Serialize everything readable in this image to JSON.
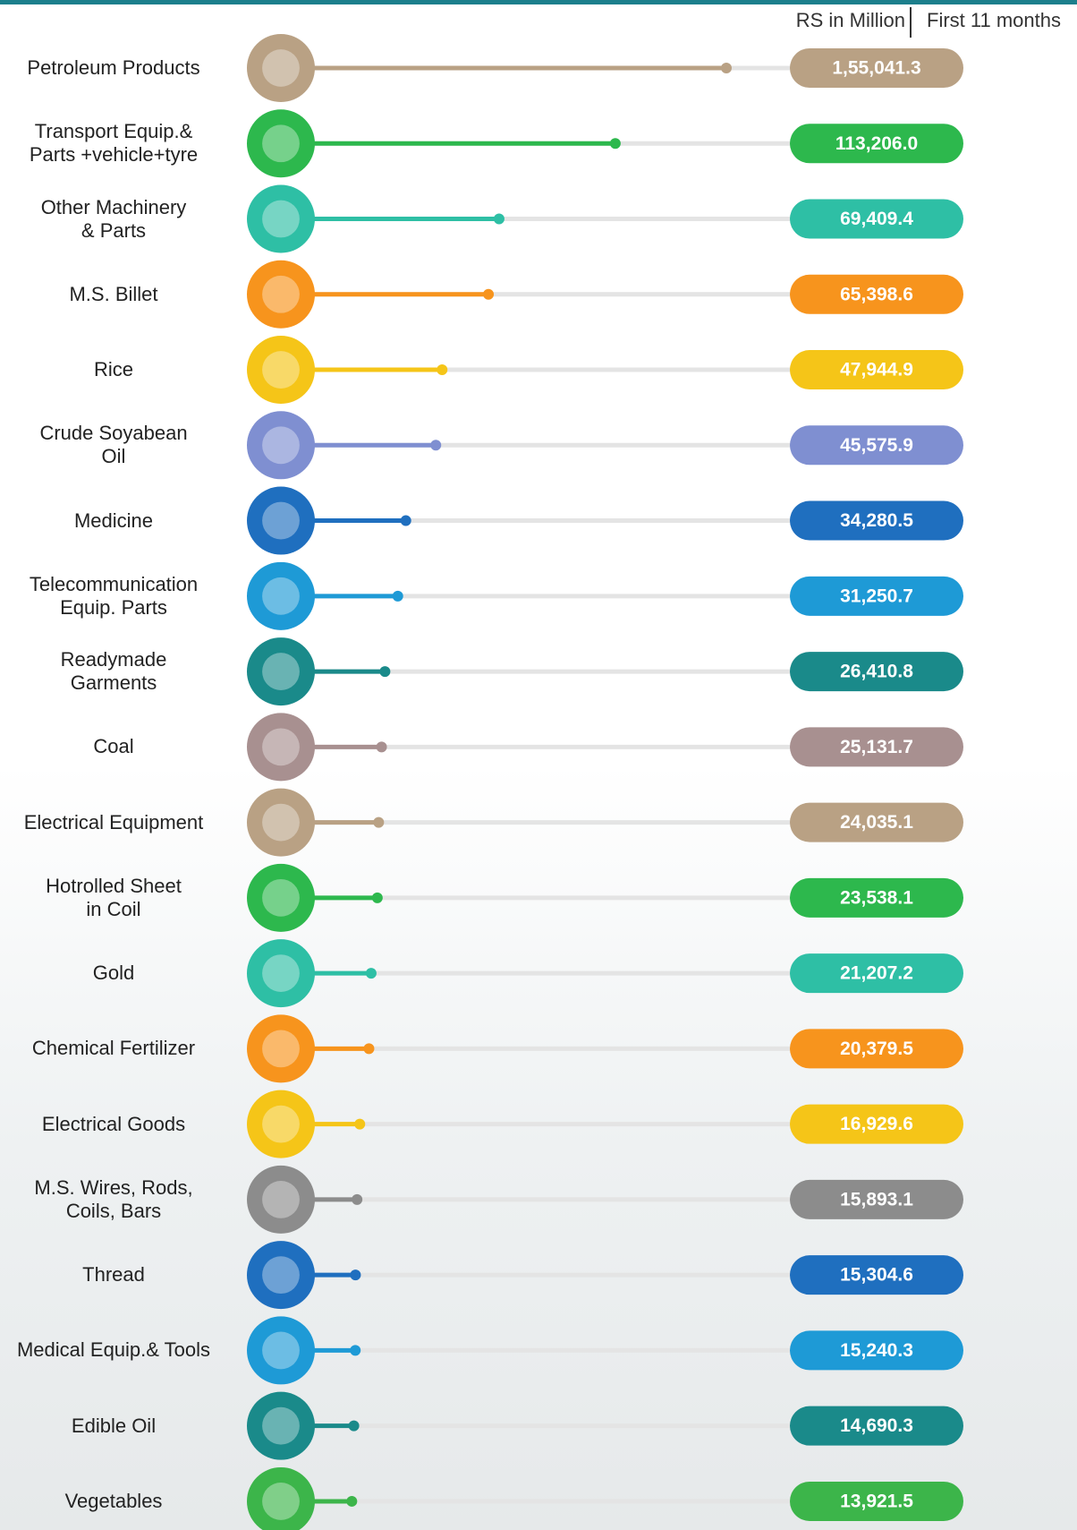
{
  "chart_data": {
    "type": "lollipop",
    "unit_label": "RS in Million",
    "period_label": "First 11 months",
    "categories": [
      "Petroleum Products",
      "Transport Equip.&\nParts +vehicle+tyre",
      "Other Machinery\n& Parts",
      "M.S. Billet",
      "Rice",
      "Crude Soyabean\nOil",
      "Medicine",
      "Telecommunication\nEquip. Parts",
      "Readymade\nGarments",
      "Coal",
      "Electrical Equipment",
      "Hotrolled Sheet\nin Coil",
      "Gold",
      "Chemical Fertilizer",
      "Electrical Goods",
      "M.S. Wires, Rods,\nCoils, Bars",
      "Thread",
      "Medical Equip.& Tools",
      "Edible Oil",
      "Vegetables"
    ],
    "values": [
      155041.3,
      113206.0,
      69409.4,
      65398.6,
      47944.9,
      45575.9,
      34280.5,
      31250.7,
      26410.8,
      25131.7,
      24035.1,
      23538.1,
      21207.2,
      20379.5,
      16929.6,
      15893.1,
      15304.6,
      15240.3,
      14690.3,
      13921.5
    ],
    "value_labels": [
      "1,55,041.3",
      "113,206.0",
      "69,409.4",
      "65,398.6",
      "47,944.9",
      "45,575.9",
      "34,280.5",
      "31,250.7",
      "26,410.8",
      "25,131.7",
      "24,035.1",
      "23,538.1",
      "21,207.2",
      "20,379.5",
      "16,929.6",
      "15,893.1",
      "15,304.6",
      "15,240.3",
      "14,690.3",
      "13,921.5"
    ],
    "colors": [
      "#b9a184",
      "#2db84d",
      "#2ebfa5",
      "#f7941d",
      "#f5c518",
      "#7f8fd1",
      "#1f6fbf",
      "#1e9ad6",
      "#1a8a8a",
      "#a89090",
      "#b9a184",
      "#2db84d",
      "#2ebfa5",
      "#f7941d",
      "#f5c518",
      "#8c8c8c",
      "#1f6fbf",
      "#1e9ad6",
      "#1a8a8a",
      "#3cb54a"
    ]
  }
}
